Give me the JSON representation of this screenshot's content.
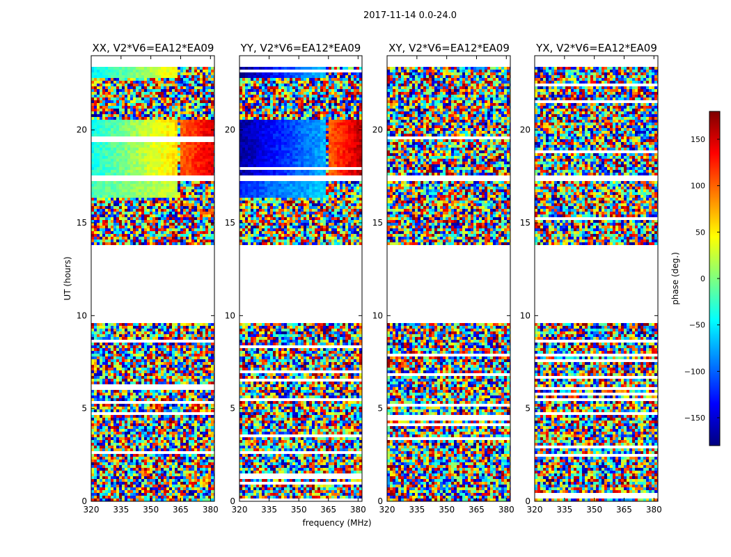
{
  "figure": {
    "suptitle": "2017-11-14 0.0-24.0",
    "xlabel": "frequency (MHz)",
    "ylabel": "UT (hours)"
  },
  "colorbar": {
    "label": "phase (deg.)",
    "range": [
      -180,
      180
    ],
    "ticks": [
      -150,
      -100,
      -50,
      0,
      50,
      100,
      150
    ],
    "tick_labels": [
      "−150",
      "−100",
      "−50",
      "0",
      "50",
      "100",
      "150"
    ],
    "colormap": "jet",
    "colors": [
      "#00007f",
      "#0000ff",
      "#007fff",
      "#00ffff",
      "#7fff7f",
      "#ffff00",
      "#ff7f00",
      "#ff0000",
      "#7f0000"
    ]
  },
  "chart_data": {
    "type": "heatmap",
    "x_range": [
      320,
      382
    ],
    "x_ticks": [
      320,
      335,
      350,
      365,
      380
    ],
    "y_range": [
      0,
      24
    ],
    "y_ticks": [
      0,
      5,
      10,
      15,
      20
    ],
    "value": "phase (deg.)",
    "panels": [
      {
        "title": "XX, V2*V6=EA12*EA09",
        "polarization": "XX"
      },
      {
        "title": "YY, V2*V6=EA12*EA09",
        "polarization": "YY"
      },
      {
        "title": "XY, V2*V6=EA12*EA09",
        "polarization": "XY"
      },
      {
        "title": "YX, V2*V6=EA12*EA09",
        "polarization": "YX"
      }
    ],
    "no_data_ut_hours": [
      [
        9.6,
        13.8
      ],
      [
        17.2,
        17.6
      ],
      [
        23.4,
        24.0
      ]
    ],
    "coherent_blocks": [
      {
        "polarization": "XX",
        "ut_hours": [
          17.6,
          20.5
        ],
        "freq_mhz": [
          320,
          364
        ],
        "phase_deg": [
          -40,
          60
        ]
      },
      {
        "polarization": "XX",
        "ut_hours": [
          17.6,
          20.5
        ],
        "freq_mhz": [
          365,
          382
        ],
        "phase_deg": [
          100,
          150
        ]
      },
      {
        "polarization": "XX",
        "ut_hours": [
          16.4,
          17.2
        ],
        "freq_mhz": [
          320,
          364
        ],
        "phase_deg": [
          -20,
          30
        ]
      },
      {
        "polarization": "XX",
        "ut_hours": [
          22.8,
          24.0
        ],
        "freq_mhz": [
          320,
          364
        ],
        "phase_deg": [
          -50,
          50
        ]
      },
      {
        "polarization": "YY",
        "ut_hours": [
          17.6,
          20.5
        ],
        "freq_mhz": [
          320,
          364
        ],
        "phase_deg": [
          -170,
          -70
        ]
      },
      {
        "polarization": "YY",
        "ut_hours": [
          17.6,
          20.5
        ],
        "freq_mhz": [
          365,
          382
        ],
        "phase_deg": [
          100,
          160
        ]
      },
      {
        "polarization": "YY",
        "ut_hours": [
          16.4,
          17.2
        ],
        "freq_mhz": [
          320,
          364
        ],
        "phase_deg": [
          -120,
          -60
        ]
      },
      {
        "polarization": "YY",
        "ut_hours": [
          22.8,
          24.0
        ],
        "freq_mhz": [
          320,
          364
        ],
        "phase_deg": [
          -180,
          -60
        ]
      }
    ]
  }
}
